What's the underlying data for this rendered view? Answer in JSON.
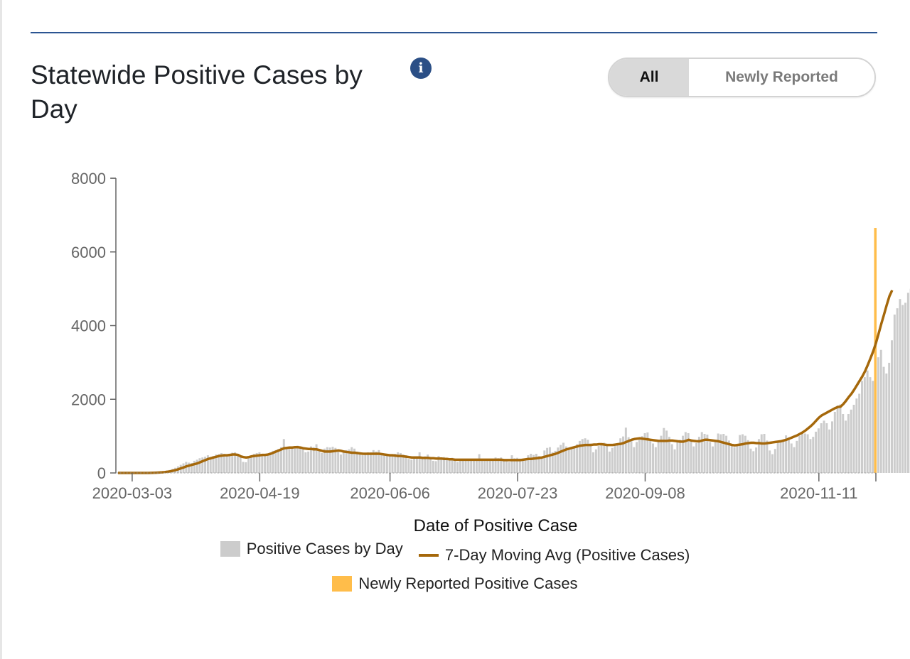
{
  "header": {
    "title": "Statewide Positive Cases by Day",
    "info_icon": "info-circle-icon",
    "toggle": {
      "options": [
        "All",
        "Newly Reported"
      ],
      "selected": "All"
    }
  },
  "colors": {
    "rule": "#2b5592",
    "bars": "#cccccc",
    "moving_avg": "#a5680b",
    "newly_reported": "#ffbd4a",
    "axis": "#666666"
  },
  "chart_data": {
    "type": "bar",
    "title": "Statewide Positive Cases by Day",
    "xlabel": "Date of Positive Case",
    "ylabel": "",
    "ylim": [
      0,
      8000
    ],
    "yticks": [
      "0",
      "2000",
      "4000",
      "6000",
      "8000"
    ],
    "xticks": [
      "2020-03-03",
      "2020-04-19",
      "2020-06-06",
      "2020-07-23",
      "2020-09-08",
      "2020-11-11"
    ],
    "x_start": "2020-02-26",
    "x_end": "2020-12-02",
    "grid": false,
    "legend": {
      "placement": "bottom",
      "entries": [
        "Positive Cases by Day",
        "7-Day Moving Avg (Positive Cases)",
        "Newly Reported Positive Cases"
      ]
    },
    "series": [
      {
        "name": "Positive Cases by Day",
        "type": "bar",
        "start": "2020-03-01",
        "values": [
          0,
          0,
          0,
          0,
          0,
          0,
          0,
          0,
          0,
          5,
          10,
          15,
          20,
          30,
          40,
          60,
          80,
          110,
          140,
          180,
          220,
          260,
          300,
          280,
          270,
          330,
          360,
          400,
          420,
          440,
          480,
          430,
          460,
          500,
          510,
          540,
          520,
          500,
          520,
          550,
          560,
          500,
          480,
          300,
          290,
          420,
          480,
          520,
          540,
          560,
          500,
          480,
          500,
          560,
          600,
          620,
          650,
          700,
          920,
          690,
          650,
          660,
          720,
          740,
          690,
          640,
          560,
          580,
          720,
          700,
          780,
          620,
          540,
          660,
          700,
          690,
          710,
          680,
          570,
          500,
          610,
          620,
          640,
          700,
          660,
          580,
          540,
          480,
          540,
          560,
          560,
          620,
          580,
          620,
          540,
          480,
          470,
          500,
          500,
          520,
          560,
          540,
          500,
          480,
          380,
          360,
          420,
          420,
          560,
          430,
          450,
          500,
          410,
          330,
          320,
          460,
          420,
          430,
          390,
          380,
          410,
          380,
          300,
          330,
          340,
          380,
          380,
          360,
          350,
          360,
          510,
          380,
          350,
          340,
          340,
          330,
          420,
          400,
          420,
          380,
          340,
          300,
          480,
          400,
          410,
          390,
          370,
          390,
          480,
          520,
          490,
          520,
          460,
          420,
          610,
          680,
          700,
          560,
          600,
          690,
          760,
          820,
          720,
          680,
          660,
          700,
          780,
          870,
          920,
          940,
          900,
          800,
          560,
          640,
          730,
          800,
          820,
          760,
          580,
          680,
          770,
          810,
          940,
          990,
          1230,
          970,
          880,
          700,
          840,
          900,
          1000,
          1080,
          1100,
          900,
          800,
          700,
          880,
          1010,
          1220,
          1150,
          980,
          780,
          640,
          830,
          900,
          1010,
          1110,
          1080,
          900,
          720,
          810,
          980,
          1110,
          1060,
          1040,
          840,
          720,
          880,
          1070,
          1050,
          1060,
          1010,
          880,
          750,
          700,
          760,
          1030,
          1050,
          1010,
          890,
          660,
          590,
          690,
          920,
          1050,
          1060,
          880,
          610,
          510,
          650,
          830,
          880,
          890,
          1020,
          960,
          800,
          700,
          870,
          1010,
          1080,
          1070,
          1050,
          920,
          980,
          1120,
          1210,
          1350,
          1420,
          1350,
          1180,
          1400,
          1660,
          1830,
          1860,
          1600,
          1420,
          1600,
          1720,
          1850,
          2020,
          2150,
          2500,
          2600,
          2780,
          2600,
          2500,
          3460,
          3140,
          3340,
          2880,
          2700,
          2990,
          3600,
          4300,
          4470,
          4720,
          4560,
          4620,
          4890,
          5000
        ]
      },
      {
        "name": "7-Day Moving Avg (Positive Cases)",
        "type": "line",
        "start": "2020-03-01",
        "values": [
          0,
          0,
          0,
          0,
          0,
          0,
          0,
          0,
          0,
          2,
          4,
          7,
          11,
          16,
          23,
          33,
          45,
          60,
          77,
          100,
          126,
          150,
          180,
          200,
          220,
          240,
          260,
          290,
          320,
          350,
          380,
          400,
          420,
          440,
          460,
          470,
          480,
          480,
          490,
          500,
          500,
          490,
          450,
          430,
          420,
          430,
          450,
          460,
          470,
          480,
          490,
          490,
          500,
          520,
          550,
          580,
          610,
          640,
          670,
          680,
          690,
          690,
          700,
          700,
          690,
          670,
          660,
          650,
          650,
          640,
          640,
          620,
          600,
          580,
          580,
          580,
          590,
          600,
          610,
          600,
          580,
          570,
          560,
          550,
          550,
          540,
          530,
          520,
          520,
          520,
          520,
          520,
          520,
          520,
          510,
          500,
          490,
          480,
          480,
          470,
          460,
          460,
          450,
          440,
          430,
          420,
          420,
          420,
          420,
          410,
          410,
          410,
          400,
          400,
          390,
          390,
          390,
          380,
          380,
          370,
          370,
          360,
          360,
          360,
          360,
          360,
          360,
          360,
          360,
          360,
          360,
          360,
          360,
          360,
          360,
          360,
          360,
          360,
          360,
          350,
          350,
          350,
          350,
          350,
          350,
          350,
          360,
          370,
          380,
          380,
          390,
          400,
          410,
          420,
          440,
          460,
          480,
          500,
          520,
          550,
          580,
          610,
          640,
          660,
          680,
          700,
          720,
          740,
          750,
          760,
          760,
          760,
          770,
          770,
          780,
          780,
          770,
          760,
          760,
          760,
          770,
          780,
          790,
          810,
          840,
          870,
          900,
          920,
          930,
          940,
          930,
          920,
          910,
          900,
          890,
          880,
          870,
          870,
          870,
          870,
          880,
          880,
          870,
          860,
          850,
          850,
          870,
          900,
          880,
          870,
          860,
          860,
          880,
          900,
          900,
          890,
          880,
          870,
          860,
          840,
          820,
          800,
          780,
          760,
          750,
          760,
          770,
          780,
          800,
          810,
          820,
          820,
          810,
          810,
          800,
          800,
          810,
          820,
          830,
          840,
          850,
          860,
          880,
          900,
          930,
          960,
          990,
          1020,
          1060,
          1100,
          1150,
          1210,
          1270,
          1340,
          1420,
          1500,
          1560,
          1600,
          1640,
          1680,
          1720,
          1760,
          1790,
          1800,
          1870,
          1960,
          2060,
          2150,
          2260,
          2380,
          2500,
          2620,
          2760,
          2930,
          3110,
          3300,
          3520,
          3780,
          4050,
          4300,
          4560,
          4800,
          4960
        ]
      },
      {
        "name": "Newly Reported Positive Cases",
        "type": "bar",
        "date": "2020-12-02",
        "value": 6650
      }
    ]
  }
}
